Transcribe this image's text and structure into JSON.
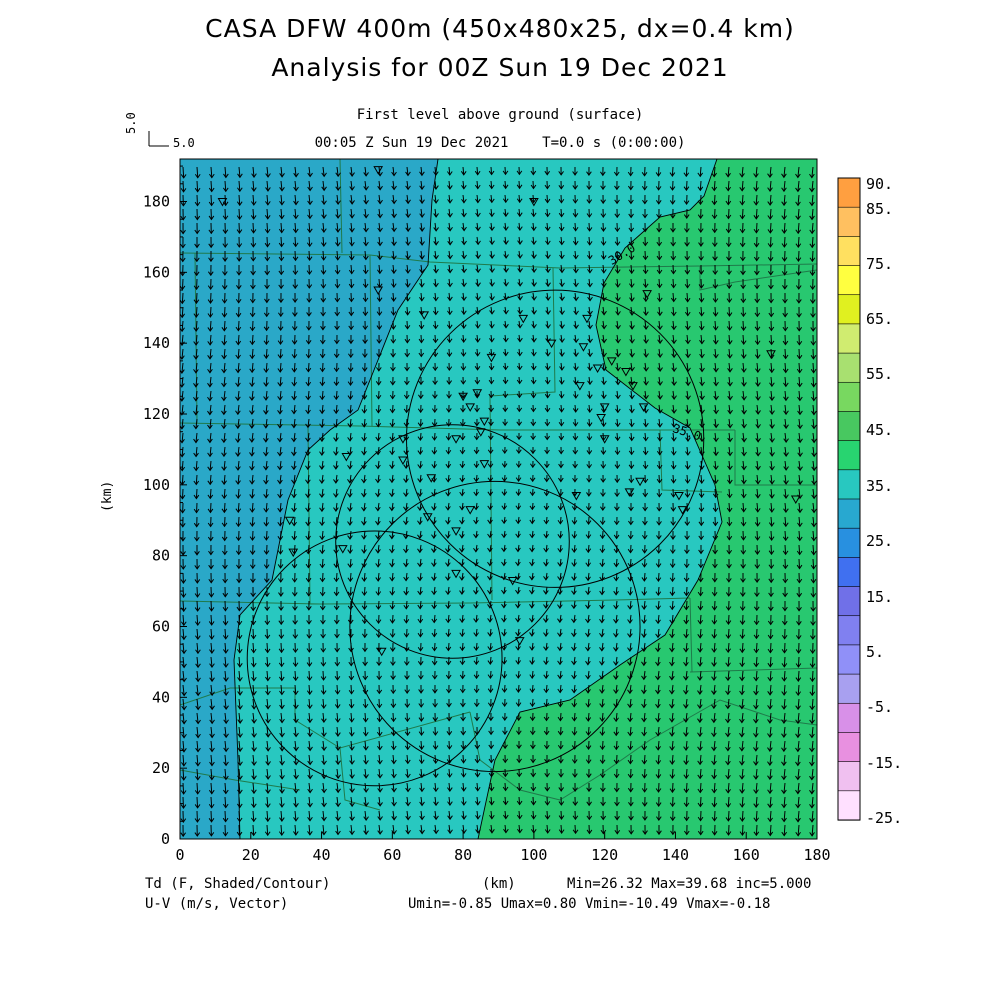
{
  "header": {
    "title_line1": "CASA DFW 400m (450x480x25, dx=0.4 km)",
    "title_line2": "Analysis for 00Z Sun 19 Dec 2021",
    "subtitle_line1": "First level above ground (surface)",
    "subtitle_line2": "00:05 Z Sun 19 Dec 2021    T=0.0 s (0:00:00)"
  },
  "vector_scale": {
    "label": "5.0"
  },
  "footer": {
    "variable1": "Td (F, Shaded/Contour)",
    "variable2": "U-V (m/s, Vector)",
    "xunit": "(km)",
    "stats1": "Min=26.32 Max=39.68 inc=5.000",
    "stats2": "Umin=-0.85 Umax=0.80 Vmin=-10.49 Vmax=-0.18"
  },
  "chart_data": {
    "type": "heatmap",
    "xlabel": "(km)",
    "ylabel": "(km)",
    "xlim": [
      0,
      180
    ],
    "ylim": [
      0,
      192
    ],
    "xticks": [
      0,
      20,
      40,
      60,
      80,
      100,
      120,
      140,
      160,
      180
    ],
    "yticks": [
      0,
      20,
      40,
      60,
      80,
      100,
      120,
      140,
      160,
      180
    ],
    "contour_labels": [
      {
        "text": "30.0",
        "x": 122,
        "y": 162
      },
      {
        "text": "35.0",
        "x": 139,
        "y": 115
      }
    ],
    "radar_rings_km": [
      {
        "cx": 55,
        "cy": 51,
        "r": 36
      },
      {
        "cx": 89,
        "cy": 60,
        "r": 41
      },
      {
        "cx": 77,
        "cy": 84,
        "r": 33
      },
      {
        "cx": 106,
        "cy": 113,
        "r": 42
      }
    ],
    "colorbar": {
      "labels": [
        "90.",
        "85.",
        "75.",
        "65.",
        "55.",
        "45.",
        "35.",
        "25.",
        "15.",
        "5.",
        "-5.",
        "-15.",
        "-25."
      ],
      "colors": [
        "#ff9f40",
        "#ffc060",
        "#ffe060",
        "#ffff40",
        "#e0f020",
        "#d0ec70",
        "#a8e070",
        "#78d860",
        "#48c860",
        "#28d470",
        "#28c8c0",
        "#28a8d0",
        "#2890e0",
        "#4070f0",
        "#7070e8",
        "#8080f0",
        "#9090f8",
        "#a8a0f0",
        "#d890e8",
        "#e890e0",
        "#f0c0f0",
        "#ffe0ff"
      ]
    },
    "fill_colors": {
      "dry": "#2aa8c8",
      "mid": "#28c8c0",
      "moist": "#28c870"
    }
  }
}
